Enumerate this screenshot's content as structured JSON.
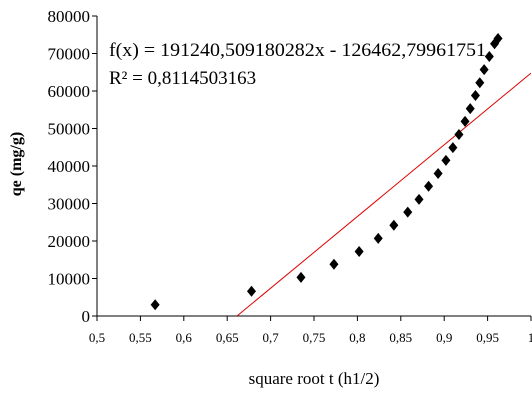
{
  "chart_data": {
    "type": "scatter",
    "xlabel": "square root t (h1/2)",
    "ylabel": "qe (mg/g)",
    "xlim": [
      0.5,
      1.0
    ],
    "ylim": [
      0,
      80000
    ],
    "x_ticks": [
      "0,5",
      "0,55",
      "0,6",
      "0,65",
      "0,7",
      "0,75",
      "0,8",
      "0,85",
      "0,9",
      "0,95",
      "1"
    ],
    "y_ticks": [
      "0",
      "10000",
      "20000",
      "30000",
      "40000",
      "50000",
      "60000",
      "70000",
      "80000"
    ],
    "grid": false,
    "legend": "none",
    "marker": "diamond",
    "marker_color": "#000000",
    "trendline_color": "#e00000",
    "points": [
      {
        "x": 0.567,
        "y": 3000
      },
      {
        "x": 0.678,
        "y": 6600
      },
      {
        "x": 0.735,
        "y": 10300
      },
      {
        "x": 0.773,
        "y": 13800
      },
      {
        "x": 0.802,
        "y": 17200
      },
      {
        "x": 0.824,
        "y": 20700
      },
      {
        "x": 0.842,
        "y": 24200
      },
      {
        "x": 0.858,
        "y": 27700
      },
      {
        "x": 0.871,
        "y": 31100
      },
      {
        "x": 0.882,
        "y": 34600
      },
      {
        "x": 0.893,
        "y": 38000
      },
      {
        "x": 0.902,
        "y": 41500
      },
      {
        "x": 0.91,
        "y": 44900
      },
      {
        "x": 0.917,
        "y": 48400
      },
      {
        "x": 0.924,
        "y": 51900
      },
      {
        "x": 0.93,
        "y": 55300
      },
      {
        "x": 0.936,
        "y": 58800
      },
      {
        "x": 0.941,
        "y": 62200
      },
      {
        "x": 0.946,
        "y": 65700
      },
      {
        "x": 0.952,
        "y": 69200
      },
      {
        "x": 0.958,
        "y": 72600
      },
      {
        "x": 0.962,
        "y": 74000
      }
    ],
    "trendline": {
      "slope": 191240.509180282,
      "intercept": -126462.79961751,
      "x_start": 0.6613,
      "x_end": 1.0
    },
    "annotations": [
      "f(x) = 191240,509180282x - 126462,79961751",
      "R² = 0,8114503163"
    ]
  }
}
